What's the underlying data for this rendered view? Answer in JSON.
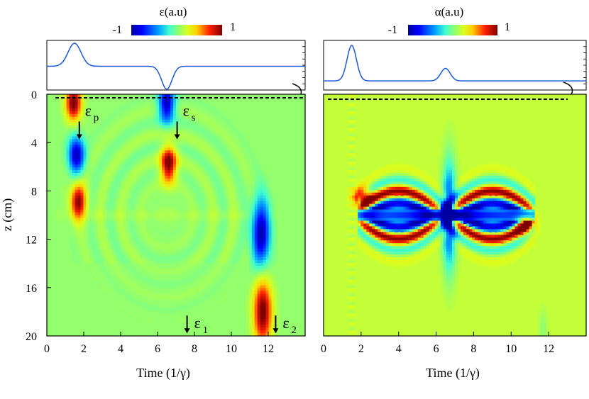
{
  "chart_data": [
    {
      "type": "heatmap",
      "title": "ε(a.u)",
      "colorbar": {
        "min_label": "-1",
        "max_label": "1",
        "min": -1,
        "max": 1,
        "colormap": "jet"
      },
      "xlabel": "Time (1/γ)",
      "ylabel": "z (cm)",
      "xlim": [
        0,
        14
      ],
      "ylim": [
        0,
        20
      ],
      "xticks": [
        "0",
        "2",
        "4",
        "6",
        "8",
        "10",
        "12"
      ],
      "yticks": [
        "0",
        "4",
        "8",
        "12",
        "16",
        "20"
      ],
      "inset_profile": {
        "description": "input field at z=0",
        "pulses": [
          {
            "t": 1.5,
            "amplitude": 0.55,
            "width": 0.35
          },
          {
            "t": 6.5,
            "amplitude": -0.55,
            "width": 0.28
          }
        ],
        "baseline": 0.4
      },
      "annotations": [
        {
          "label": "ε",
          "sub": "p",
          "t": 2.3,
          "z": 1.2
        },
        {
          "label": "ε",
          "sub": "s",
          "t": 7.6,
          "z": 1.2
        },
        {
          "label": "ε",
          "sub": "1",
          "t": 7.6,
          "z": 18.9
        },
        {
          "label": "ε",
          "sub": "2",
          "t": 12.4,
          "z": 18.9
        }
      ],
      "blobs": [
        {
          "t": 1.45,
          "z": 0.7,
          "value": 1.0
        },
        {
          "t": 1.6,
          "z": 5.0,
          "value": -1.0
        },
        {
          "t": 1.7,
          "z": 8.9,
          "value": 0.9
        },
        {
          "t": 6.5,
          "z": 0.8,
          "value": -1.0
        },
        {
          "t": 6.6,
          "z": 5.8,
          "value": 1.0
        },
        {
          "t": 11.6,
          "z": 11.5,
          "value": -1.0
        },
        {
          "t": 11.7,
          "z": 18.0,
          "value": 1.0
        }
      ]
    },
    {
      "type": "heatmap",
      "title": "α(a.u)",
      "colorbar": {
        "min_label": "-1",
        "max_label": "1",
        "min": -1,
        "max": 1,
        "colormap": "jet"
      },
      "xlabel": "Time (1/γ)",
      "ylabel": "",
      "xlim": [
        0,
        14
      ],
      "ylim": [
        0,
        20
      ],
      "xticks": [
        "0",
        "2",
        "4",
        "6",
        "8",
        "10",
        "12"
      ],
      "yticks": [],
      "inset_profile": {
        "description": "input field at z=0",
        "pulses": [
          {
            "t": 1.5,
            "amplitude": 0.85,
            "width": 0.25
          },
          {
            "t": 6.5,
            "amplitude": 0.3,
            "width": 0.25
          }
        ],
        "baseline": 0.05
      },
      "features": "interference fringes centered near z = 10 cm between t ≈ 2 and t ≈ 11, strong negative band near z = 10"
    }
  ]
}
